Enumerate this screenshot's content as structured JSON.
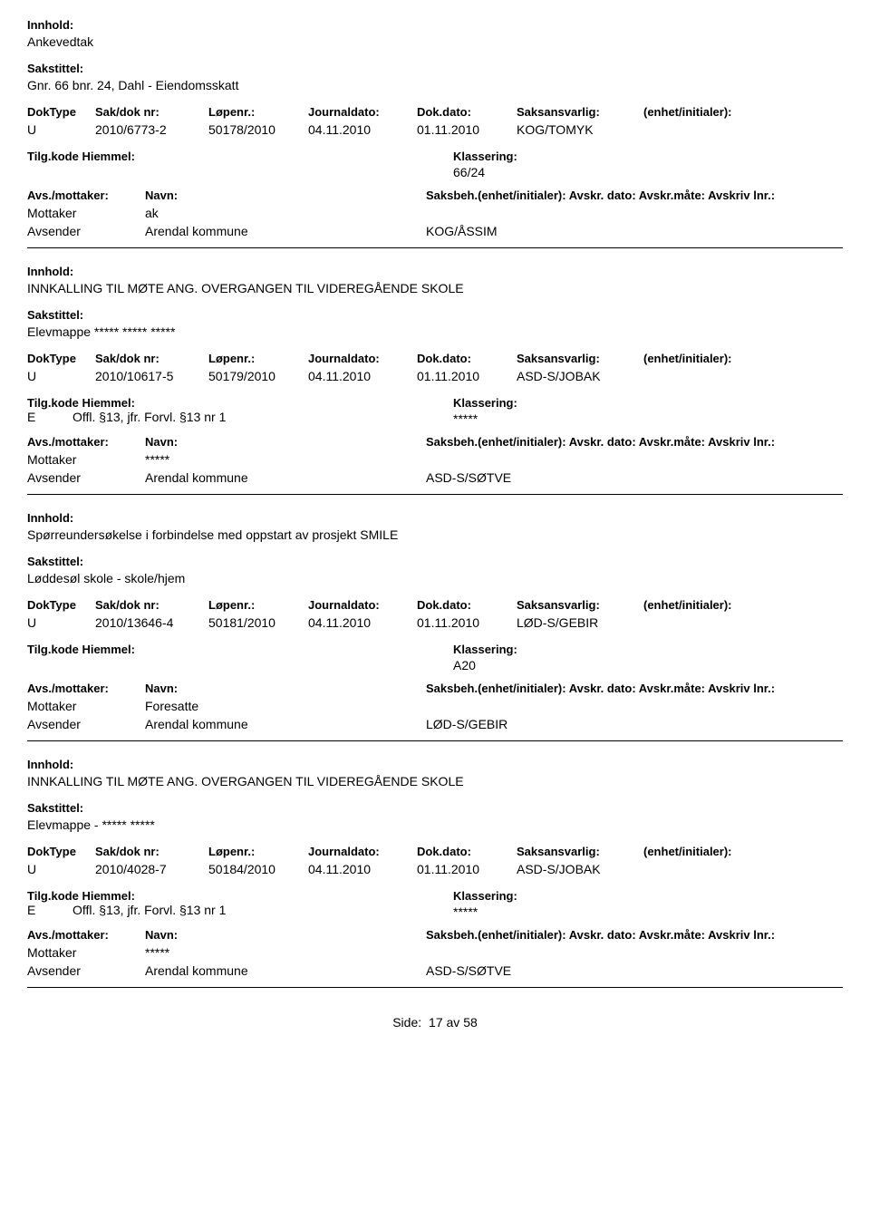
{
  "labels": {
    "innhold": "Innhold:",
    "sakstittel": "Sakstittel:",
    "doktype": "DokType",
    "saknr": "Sak/dok nr:",
    "lopenr": "Løpenr.:",
    "jdato": "Journaldato:",
    "dokdato": "Dok.dato:",
    "saksansv": "Saksansvarlig:",
    "enhet": "(enhet/initialer):",
    "tilgkode": "Tilg.kode",
    "hjemmel": "Hiemmel:",
    "klassering": "Klassering:",
    "avsmottaker": "Avs./mottaker:",
    "navn": "Navn:",
    "saksbeh": "Saksbeh.(enhet/initialer): Avskr. dato:  Avskr.måte: Avskriv lnr.:",
    "mottaker": "Mottaker",
    "avsender": "Avsender",
    "side": "Side:",
    "av": "av"
  },
  "footer": {
    "page": "17",
    "total": "58"
  },
  "records": [
    {
      "innhold": "Ankevedtak",
      "sakstittel": "Gnr. 66 bnr. 24, Dahl - Eiendomsskatt",
      "doktype": "U",
      "saknr": "2010/6773-2",
      "lopenr": "50178/2010",
      "jdato": "04.11.2010",
      "dokdato": "01.11.2010",
      "saksansv": "KOG/TOMYK",
      "tilgkode": "",
      "hjemmel": "",
      "klassering": "66/24",
      "mottaker_navn": "ak",
      "avsender_navn": "Arendal kommune",
      "avsender_saksbeh": "KOG/ÅSSIM"
    },
    {
      "innhold": "INNKALLING TIL MØTE ANG. OVERGANGEN TIL VIDEREGÅENDE SKOLE",
      "sakstittel": "Elevmappe ***** ***** *****",
      "doktype": "U",
      "saknr": "2010/10617-5",
      "lopenr": "50179/2010",
      "jdato": "04.11.2010",
      "dokdato": "01.11.2010",
      "saksansv": "ASD-S/JOBAK",
      "tilgkode": "E",
      "hjemmel": "Offl. §13, jfr. Forvl. §13 nr 1",
      "klassering": "*****",
      "mottaker_navn": "*****",
      "avsender_navn": "Arendal kommune",
      "avsender_saksbeh": "ASD-S/SØTVE"
    },
    {
      "innhold": "Spørreundersøkelse i forbindelse med oppstart av prosjekt SMILE",
      "sakstittel": "Løddesøl skole - skole/hjem",
      "doktype": "U",
      "saknr": "2010/13646-4",
      "lopenr": "50181/2010",
      "jdato": "04.11.2010",
      "dokdato": "01.11.2010",
      "saksansv": "LØD-S/GEBIR",
      "tilgkode": "",
      "hjemmel": "",
      "klassering": "A20",
      "mottaker_navn": "Foresatte",
      "avsender_navn": "Arendal kommune",
      "avsender_saksbeh": "LØD-S/GEBIR"
    },
    {
      "innhold": "INNKALLING TIL MØTE ANG. OVERGANGEN TIL VIDEREGÅENDE SKOLE",
      "sakstittel": "Elevmappe - ***** *****",
      "doktype": "U",
      "saknr": "2010/4028-7",
      "lopenr": "50184/2010",
      "jdato": "04.11.2010",
      "dokdato": "01.11.2010",
      "saksansv": "ASD-S/JOBAK",
      "tilgkode": "E",
      "hjemmel": "Offl. §13, jfr. Forvl. §13 nr 1",
      "klassering": "*****",
      "mottaker_navn": "*****",
      "avsender_navn": "Arendal kommune",
      "avsender_saksbeh": "ASD-S/SØTVE"
    }
  ]
}
